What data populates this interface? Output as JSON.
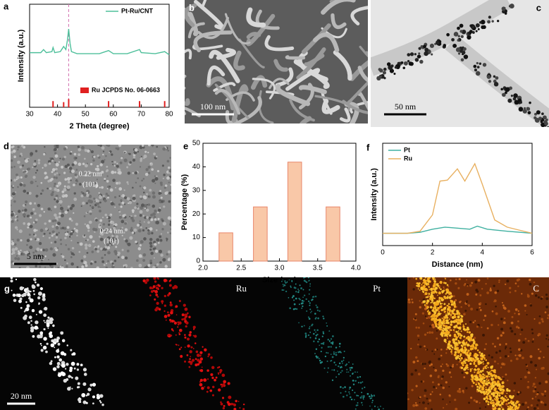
{
  "panel_labels": [
    "a",
    "b",
    "c",
    "d",
    "e",
    "f",
    "g"
  ],
  "images": [
    {
      "scale_bar": "100 nm"
    },
    {
      "scale_bar": "50 nm"
    },
    {
      "scale_bar": "5 nm",
      "annotations": [
        "0.22 nm",
        "(101)",
        "0.24 nm",
        "(101)"
      ]
    },
    {
      "scale_bar": "20 nm"
    }
  ],
  "eds_maps": [
    "Ru",
    "Pt",
    "C"
  ],
  "chart_data": [
    {
      "type": "line",
      "x_label": "2 Theta (degree)",
      "y_label": "Intensity (a.u.)",
      "xlim": [
        30,
        80
      ],
      "xticks": [
        30,
        40,
        50,
        60,
        70,
        80
      ],
      "ylim": [
        0,
        10
      ],
      "vline": {
        "x": 44,
        "color": "#d46fb0"
      },
      "series": [
        {
          "name": "Pt-Ru/CNT",
          "color": "#4dbf9a",
          "x": [
            30,
            34,
            35,
            36,
            38,
            38.4,
            39,
            41,
            42.2,
            43,
            43.6,
            44,
            44.5,
            45,
            47,
            50,
            55,
            58.3,
            60,
            65,
            69.4,
            70,
            75,
            78.4,
            80
          ],
          "values": [
            5.3,
            5.3,
            5.6,
            5.3,
            5.4,
            5.8,
            5.3,
            5.4,
            5.9,
            5.6,
            6.6,
            7.6,
            6.2,
            5.4,
            5.2,
            5.2,
            5.2,
            5.5,
            5.2,
            5.2,
            5.6,
            5.3,
            5.2,
            5.4,
            5.1
          ]
        },
        {
          "name": "Ru JCPDS No. 06-0663",
          "color": "#e02020",
          "type": "stick",
          "x": [
            38.4,
            42.2,
            44.0,
            58.3,
            69.4,
            78.4
          ],
          "values": [
            0.6,
            0.5,
            0.8,
            0.6,
            0.6,
            0.6
          ]
        }
      ]
    },
    {
      "type": "bar",
      "x_label": "Size (nm)",
      "y_label": "Percentage (%)",
      "xlim": [
        2,
        4
      ],
      "xticks": [
        {
          "value": 2,
          "label": "2.0"
        },
        2.5,
        {
          "value": 3,
          "label": "3.0"
        },
        3.5,
        {
          "value": 4,
          "label": "4.0"
        }
      ],
      "ylim": [
        0,
        50
      ],
      "yticks": [
        0,
        10,
        20,
        30,
        40,
        50
      ],
      "x": [
        2.3,
        2.75,
        3.2,
        3.7
      ],
      "values": [
        12,
        23,
        42,
        23
      ],
      "color": "#f9c8a8",
      "edge_color": "#e8866a"
    },
    {
      "type": "line",
      "x_label": "Distance (nm)",
      "y_label": "Intensity (a.u.)",
      "xlim": [
        0,
        6
      ],
      "xticks": [
        0,
        2,
        4,
        6
      ],
      "ylim": [
        0,
        10
      ],
      "legend": "upper left",
      "series": [
        {
          "name": "Pt",
          "color": "#3fb0a0",
          "x": [
            0,
            1,
            1.5,
            2,
            2.5,
            3,
            3.5,
            3.8,
            4.2,
            5,
            6
          ],
          "values": [
            1.2,
            1.2,
            1.3,
            1.6,
            1.8,
            1.7,
            1.6,
            1.9,
            1.6,
            1.4,
            1.2
          ]
        },
        {
          "name": "Ru",
          "color": "#e8b060",
          "x": [
            0,
            1,
            1.5,
            2,
            2.3,
            2.6,
            3,
            3.3,
            3.7,
            4,
            4.5,
            5,
            5.5,
            6
          ],
          "values": [
            1.2,
            1.2,
            1.4,
            3,
            6.3,
            6.4,
            7.5,
            6.3,
            8,
            6,
            2.5,
            1.8,
            1.5,
            1.2
          ]
        }
      ]
    }
  ]
}
